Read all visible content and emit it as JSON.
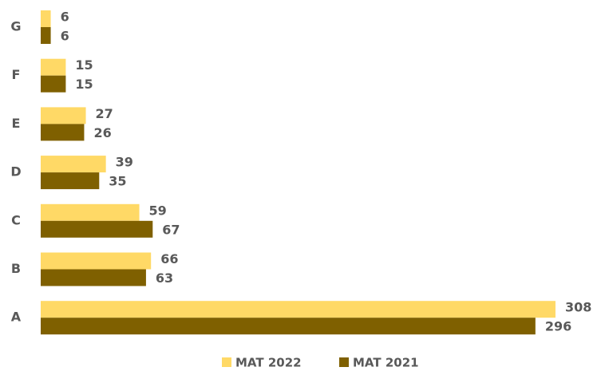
{
  "chart_data": {
    "type": "bar",
    "orientation": "horizontal",
    "categories": [
      "G",
      "F",
      "E",
      "D",
      "C",
      "B",
      "A"
    ],
    "series": [
      {
        "name": "MAT 2022",
        "color": "#ffd966",
        "values": [
          6,
          15,
          27,
          39,
          59,
          66,
          308
        ]
      },
      {
        "name": "MAT 2021",
        "color": "#7f6000",
        "values": [
          6,
          15,
          26,
          35,
          67,
          63,
          296
        ]
      }
    ],
    "legend": "bottom"
  }
}
